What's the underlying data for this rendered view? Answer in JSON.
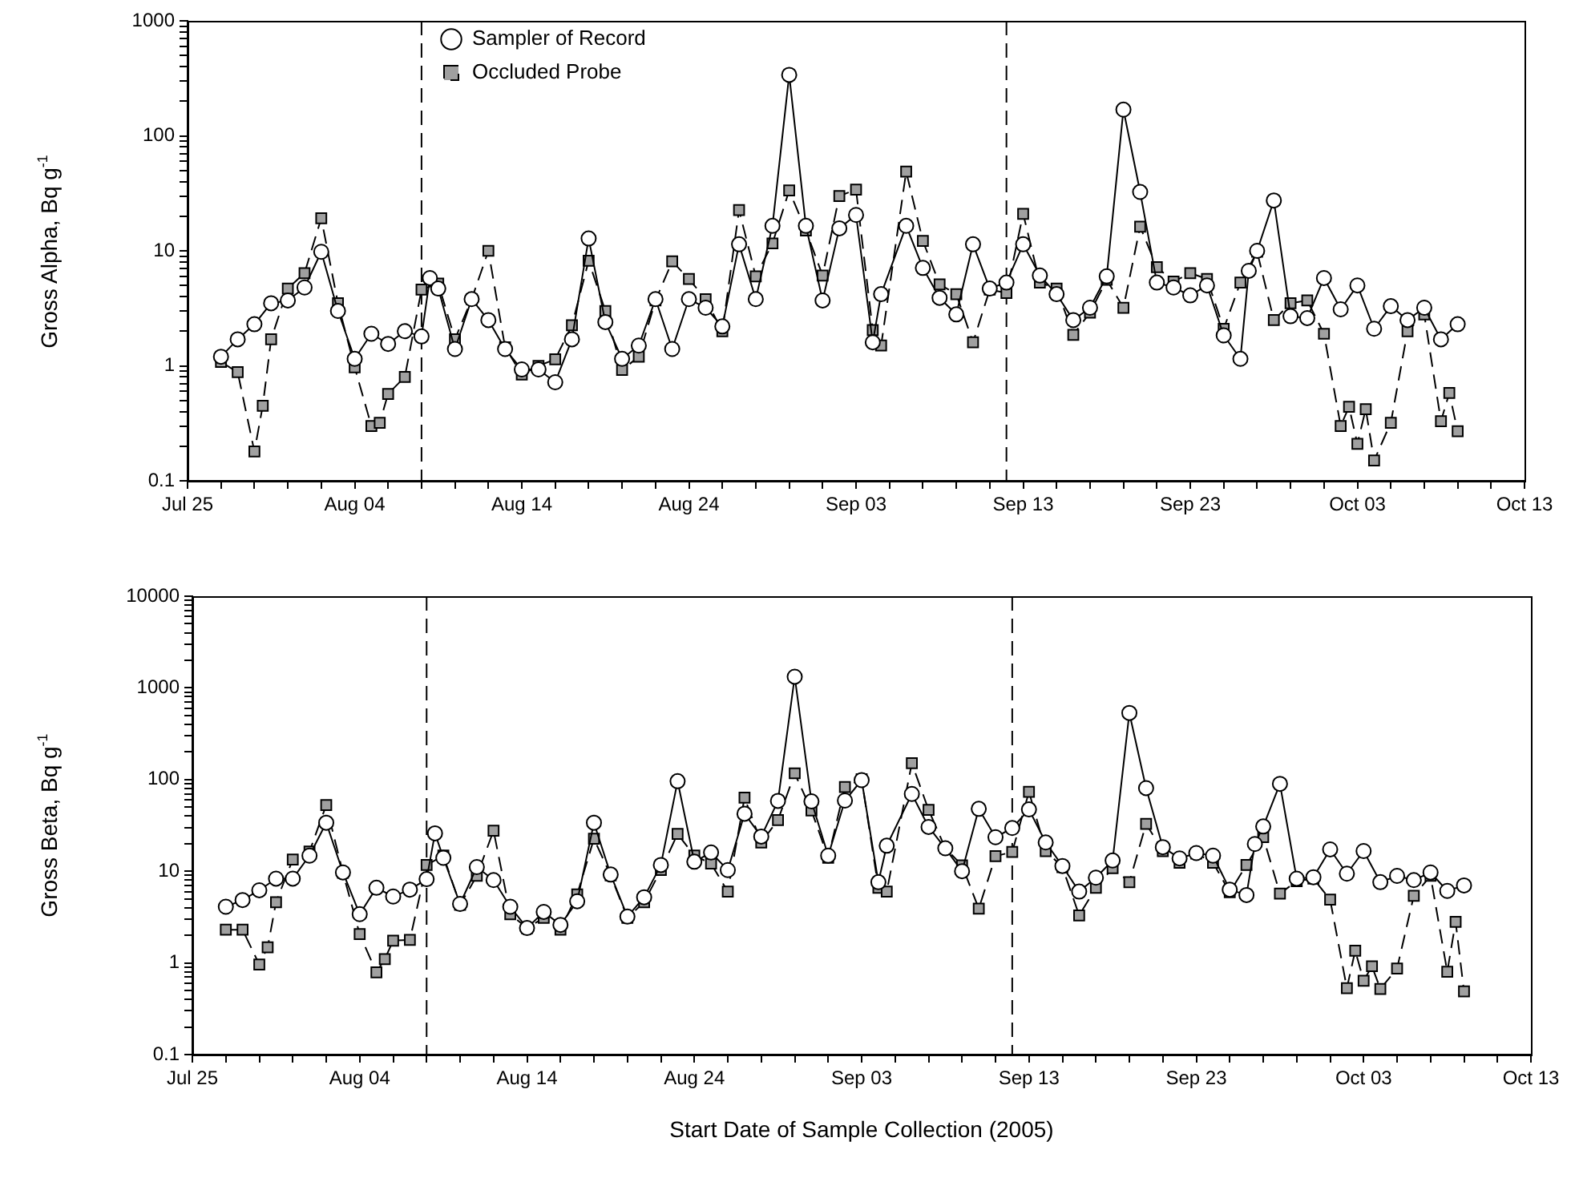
{
  "chart_data": [
    {
      "type": "line",
      "ylabel": "Gross Alpha, Bq g$^{-1}$",
      "log": "y",
      "grid": false,
      "legend": "top left",
      "xlim": [
        "2005-07-25",
        "2005-10-13"
      ],
      "xticks": [
        {
          "value": "2005-07-25",
          "label": "Jul 25"
        },
        {
          "value": "2005-07-27",
          "label": null
        },
        {
          "value": "2005-07-29",
          "label": null
        },
        {
          "value": "2005-07-31",
          "label": null
        },
        {
          "value": "2005-08-02",
          "label": null
        },
        {
          "value": "2005-08-04",
          "label": "Aug 04"
        },
        {
          "value": "2005-08-06",
          "label": null
        },
        {
          "value": "2005-08-08",
          "label": null
        },
        {
          "value": "2005-08-10",
          "label": null
        },
        {
          "value": "2005-08-12",
          "label": null
        },
        {
          "value": "2005-08-14",
          "label": "Aug 14"
        },
        {
          "value": "2005-08-16",
          "label": null
        },
        {
          "value": "2005-08-18",
          "label": null
        },
        {
          "value": "2005-08-20",
          "label": null
        },
        {
          "value": "2005-08-22",
          "label": null
        },
        {
          "value": "2005-08-24",
          "label": "Aug 24"
        },
        {
          "value": "2005-08-26",
          "label": null
        },
        {
          "value": "2005-08-28",
          "label": null
        },
        {
          "value": "2005-08-30",
          "label": null
        },
        {
          "value": "2005-09-01",
          "label": null
        },
        {
          "value": "2005-09-03",
          "label": "Sep 03"
        },
        {
          "value": "2005-09-05",
          "label": null
        },
        {
          "value": "2005-09-07",
          "label": null
        },
        {
          "value": "2005-09-09",
          "label": null
        },
        {
          "value": "2005-09-11",
          "label": null
        },
        {
          "value": "2005-09-13",
          "label": "Sep 13"
        },
        {
          "value": "2005-09-15",
          "label": null
        },
        {
          "value": "2005-09-17",
          "label": null
        },
        {
          "value": "2005-09-19",
          "label": null
        },
        {
          "value": "2005-09-21",
          "label": null
        },
        {
          "value": "2005-09-23",
          "label": "Sep 23"
        },
        {
          "value": "2005-09-25",
          "label": null
        },
        {
          "value": "2005-09-27",
          "label": null
        },
        {
          "value": "2005-09-29",
          "label": null
        },
        {
          "value": "2005-10-01",
          "label": null
        },
        {
          "value": "2005-10-03",
          "label": "Oct 03"
        },
        {
          "value": "2005-10-05",
          "label": null
        },
        {
          "value": "2005-10-07",
          "label": null
        },
        {
          "value": "2005-10-09",
          "label": null
        },
        {
          "value": "2005-10-11",
          "label": null
        },
        {
          "value": "2005-10-13",
          "label": "Oct 13"
        }
      ],
      "ylim": [
        0.1,
        1000
      ],
      "yticks": [
        0.1,
        {
          "value": 0.2,
          "label": null
        },
        {
          "value": 0.3,
          "label": null
        },
        {
          "value": 0.4,
          "label": null
        },
        {
          "value": 0.5,
          "label": null
        },
        {
          "value": 0.6,
          "label": null
        },
        {
          "value": 0.7,
          "label": null
        },
        {
          "value": 0.8,
          "label": null
        },
        {
          "value": 0.9,
          "label": null
        },
        1,
        {
          "value": 2,
          "label": null
        },
        {
          "value": 3,
          "label": null
        },
        {
          "value": 4,
          "label": null
        },
        {
          "value": 5,
          "label": null
        },
        {
          "value": 6,
          "label": null
        },
        {
          "value": 7,
          "label": null
        },
        {
          "value": 8,
          "label": null
        },
        {
          "value": 9,
          "label": null
        },
        10,
        {
          "value": 20,
          "label": null
        },
        {
          "value": 30,
          "label": null
        },
        {
          "value": 40,
          "label": null
        },
        {
          "value": 50,
          "label": null
        },
        {
          "value": 60,
          "label": null
        },
        {
          "value": 70,
          "label": null
        },
        {
          "value": 80,
          "label": null
        },
        {
          "value": 90,
          "label": null
        },
        100,
        {
          "value": 200,
          "label": null
        },
        {
          "value": 300,
          "label": null
        },
        {
          "value": 400,
          "label": null
        },
        {
          "value": 500,
          "label": null
        },
        {
          "value": 600,
          "label": null
        },
        {
          "value": 700,
          "label": null
        },
        {
          "value": 800,
          "label": null
        },
        {
          "value": 900,
          "label": null
        },
        1000
      ],
      "ref_lines": [
        {
          "axis": "x",
          "value": "2005-08-08",
          "color": "#000000",
          "line_style": "dashed"
        },
        {
          "axis": "x",
          "value": "2005-09-12",
          "color": "#000000",
          "line_style": "dashed"
        }
      ],
      "series": [
        {
          "name": "Sampler of Record",
          "color": "#ffffff",
          "marker": "circle",
          "line_style": "solid",
          "x": [
            "2005-07-27",
            "2005-07-28",
            "2005-07-29",
            "2005-07-30",
            "2005-07-31",
            "2005-08-01",
            "2005-08-02",
            "2005-08-03",
            "2005-08-04",
            "2005-08-05",
            "2005-08-06",
            "2005-08-07",
            "2005-08-08",
            "2005-08-08T12:00",
            "2005-08-09",
            "2005-08-10",
            "2005-08-11",
            "2005-08-12",
            "2005-08-13",
            "2005-08-14",
            "2005-08-15",
            "2005-08-16",
            "2005-08-17",
            "2005-08-18",
            "2005-08-19",
            "2005-08-20",
            "2005-08-21",
            "2005-08-22",
            "2005-08-23",
            "2005-08-24",
            "2005-08-25",
            "2005-08-26",
            "2005-08-27",
            "2005-08-28",
            "2005-08-29",
            "2005-08-30",
            "2005-08-31",
            "2005-09-01",
            "2005-09-02",
            "2005-09-03",
            "2005-09-04",
            "2005-09-04T12:00",
            "2005-09-06",
            "2005-09-07",
            "2005-09-08",
            "2005-09-09",
            "2005-09-10",
            "2005-09-11",
            "2005-09-12",
            "2005-09-13",
            "2005-09-14",
            "2005-09-15",
            "2005-09-16",
            "2005-09-17",
            "2005-09-18",
            "2005-09-19",
            "2005-09-20",
            "2005-09-21",
            "2005-09-22",
            "2005-09-23",
            "2005-09-24",
            "2005-09-25",
            "2005-09-26",
            "2005-09-26T12:00",
            "2005-09-27",
            "2005-09-28",
            "2005-09-29",
            "2005-09-30",
            "2005-10-01",
            "2005-10-02",
            "2005-10-03",
            "2005-10-04",
            "2005-10-05",
            "2005-10-06",
            "2005-10-07",
            "2005-10-08",
            "2005-10-09"
          ],
          "values": [
            1.2,
            1.7,
            2.3,
            3.5,
            3.7,
            4.8,
            9.8,
            3.0,
            1.15,
            1.9,
            1.55,
            2.0,
            1.8,
            5.8,
            4.7,
            1.4,
            3.8,
            2.5,
            1.4,
            0.93,
            0.93,
            0.72,
            1.7,
            12.8,
            2.4,
            1.15,
            1.5,
            3.8,
            1.4,
            3.8,
            3.2,
            2.2,
            11.4,
            3.8,
            16.5,
            339,
            16.5,
            3.7,
            15.7,
            20.5,
            1.6,
            4.2,
            16.5,
            7.1,
            3.9,
            2.8,
            11.4,
            4.7,
            5.3,
            11.4,
            6.1,
            4.2,
            2.5,
            3.2,
            6.0,
            169,
            32.5,
            5.3,
            4.8,
            4.1,
            5.0,
            1.84,
            1.15,
            6.7,
            10,
            27.4,
            2.7,
            2.6,
            5.8,
            3.1,
            5.0,
            2.1,
            3.3,
            2.5,
            3.2,
            1.7,
            2.3
          ]
        },
        {
          "name": "Occluded Probe",
          "color": "#a0a0a0",
          "marker": "square",
          "line_style": "dashed",
          "x": [
            "2005-07-27",
            "2005-07-28",
            "2005-07-29",
            "2005-07-29T12:00",
            "2005-07-30",
            "2005-07-31",
            "2005-08-01",
            "2005-08-02",
            "2005-08-03",
            "2005-08-04",
            "2005-08-05",
            "2005-08-05T12:00",
            "2005-08-06",
            "2005-08-07",
            "2005-08-08",
            "2005-08-09",
            "2005-08-10",
            "2005-08-11",
            "2005-08-12",
            "2005-08-13",
            "2005-08-14",
            "2005-08-15",
            "2005-08-16",
            "2005-08-17",
            "2005-08-18",
            "2005-08-19",
            "2005-08-20",
            "2005-08-21",
            "2005-08-22",
            "2005-08-23",
            "2005-08-24",
            "2005-08-25",
            "2005-08-26",
            "2005-08-27",
            "2005-08-28",
            "2005-08-29",
            "2005-08-30",
            "2005-08-31",
            "2005-09-01",
            "2005-09-02",
            "2005-09-03",
            "2005-09-04",
            "2005-09-04T12:00",
            "2005-09-06",
            "2005-09-07",
            "2005-09-08",
            "2005-09-09",
            "2005-09-10",
            "2005-09-11",
            "2005-09-12",
            "2005-09-13",
            "2005-09-14",
            "2005-09-15",
            "2005-09-16",
            "2005-09-17",
            "2005-09-18",
            "2005-09-19",
            "2005-09-20",
            "2005-09-21",
            "2005-09-22",
            "2005-09-23",
            "2005-09-24",
            "2005-09-25",
            "2005-09-26",
            "2005-09-27",
            "2005-09-28",
            "2005-09-29",
            "2005-09-30",
            "2005-10-01",
            "2005-10-02",
            "2005-10-02T12:00",
            "2005-10-03",
            "2005-10-03T12:00",
            "2005-10-04",
            "2005-10-05",
            "2005-10-06",
            "2005-10-07",
            "2005-10-08",
            "2005-10-08T12:00",
            "2005-10-09"
          ],
          "values": [
            1.08,
            0.88,
            0.18,
            0.45,
            1.7,
            4.7,
            6.4,
            19.2,
            3.5,
            0.97,
            0.3,
            0.32,
            0.57,
            0.8,
            4.6,
            5.2,
            1.7,
            3.8,
            10,
            1.45,
            0.84,
            1.0,
            1.14,
            2.25,
            8.2,
            3.0,
            0.92,
            1.2,
            3.7,
            8.1,
            5.7,
            3.8,
            2.0,
            22.6,
            6.0,
            11.6,
            33.5,
            15,
            6.1,
            30,
            34,
            2.05,
            1.5,
            48.8,
            12.2,
            5.1,
            4.2,
            1.6,
            4.6,
            4.3,
            21,
            5.3,
            4.7,
            1.86,
            2.9,
            5.6,
            3.2,
            16.2,
            7.2,
            5.4,
            6.4,
            5.7,
            2.1,
            5.3,
            9.8,
            2.5,
            3.5,
            3.7,
            1.9,
            0.3,
            0.44,
            0.21,
            0.42,
            0.15,
            0.32,
            2.0,
            2.8,
            0.33,
            0.58,
            0.27
          ]
        }
      ]
    },
    {
      "type": "line",
      "xlabel": "Start Date of Sample Collection (2005)",
      "ylabel": "Gross Beta, Bq g$^{-1}$",
      "log": "y",
      "grid": false,
      "xlim": [
        "2005-07-25",
        "2005-10-13"
      ],
      "xticks": [
        {
          "value": "2005-07-25",
          "label": "Jul 25"
        },
        {
          "value": "2005-07-27",
          "label": null
        },
        {
          "value": "2005-07-29",
          "label": null
        },
        {
          "value": "2005-07-31",
          "label": null
        },
        {
          "value": "2005-08-02",
          "label": null
        },
        {
          "value": "2005-08-04",
          "label": "Aug 04"
        },
        {
          "value": "2005-08-06",
          "label": null
        },
        {
          "value": "2005-08-08",
          "label": null
        },
        {
          "value": "2005-08-10",
          "label": null
        },
        {
          "value": "2005-08-12",
          "label": null
        },
        {
          "value": "2005-08-14",
          "label": "Aug 14"
        },
        {
          "value": "2005-08-16",
          "label": null
        },
        {
          "value": "2005-08-18",
          "label": null
        },
        {
          "value": "2005-08-20",
          "label": null
        },
        {
          "value": "2005-08-22",
          "label": null
        },
        {
          "value": "2005-08-24",
          "label": "Aug 24"
        },
        {
          "value": "2005-08-26",
          "label": null
        },
        {
          "value": "2005-08-28",
          "label": null
        },
        {
          "value": "2005-08-30",
          "label": null
        },
        {
          "value": "2005-09-01",
          "label": null
        },
        {
          "value": "2005-09-03",
          "label": "Sep 03"
        },
        {
          "value": "2005-09-05",
          "label": null
        },
        {
          "value": "2005-09-07",
          "label": null
        },
        {
          "value": "2005-09-09",
          "label": null
        },
        {
          "value": "2005-09-11",
          "label": null
        },
        {
          "value": "2005-09-13",
          "label": "Sep 13"
        },
        {
          "value": "2005-09-15",
          "label": null
        },
        {
          "value": "2005-09-17",
          "label": null
        },
        {
          "value": "2005-09-19",
          "label": null
        },
        {
          "value": "2005-09-21",
          "label": null
        },
        {
          "value": "2005-09-23",
          "label": "Sep 23"
        },
        {
          "value": "2005-09-25",
          "label": null
        },
        {
          "value": "2005-09-27",
          "label": null
        },
        {
          "value": "2005-09-29",
          "label": null
        },
        {
          "value": "2005-10-01",
          "label": null
        },
        {
          "value": "2005-10-03",
          "label": "Oct 03"
        },
        {
          "value": "2005-10-05",
          "label": null
        },
        {
          "value": "2005-10-07",
          "label": null
        },
        {
          "value": "2005-10-09",
          "label": null
        },
        {
          "value": "2005-10-11",
          "label": null
        },
        {
          "value": "2005-10-13",
          "label": "Oct 13"
        }
      ],
      "ylim": [
        0.1,
        10000
      ],
      "yticks": [
        0.1,
        {
          "value": 0.2,
          "label": null
        },
        {
          "value": 0.3,
          "label": null
        },
        {
          "value": 0.4,
          "label": null
        },
        {
          "value": 0.5,
          "label": null
        },
        {
          "value": 0.6,
          "label": null
        },
        {
          "value": 0.7,
          "label": null
        },
        {
          "value": 0.8,
          "label": null
        },
        {
          "value": 0.9,
          "label": null
        },
        1,
        {
          "value": 2,
          "label": null
        },
        {
          "value": 3,
          "label": null
        },
        {
          "value": 4,
          "label": null
        },
        {
          "value": 5,
          "label": null
        },
        {
          "value": 6,
          "label": null
        },
        {
          "value": 7,
          "label": null
        },
        {
          "value": 8,
          "label": null
        },
        {
          "value": 9,
          "label": null
        },
        10,
        {
          "value": 20,
          "label": null
        },
        {
          "value": 30,
          "label": null
        },
        {
          "value": 40,
          "label": null
        },
        {
          "value": 50,
          "label": null
        },
        {
          "value": 60,
          "label": null
        },
        {
          "value": 70,
          "label": null
        },
        {
          "value": 80,
          "label": null
        },
        {
          "value": 90,
          "label": null
        },
        100,
        {
          "value": 200,
          "label": null
        },
        {
          "value": 300,
          "label": null
        },
        {
          "value": 400,
          "label": null
        },
        {
          "value": 500,
          "label": null
        },
        {
          "value": 600,
          "label": null
        },
        {
          "value": 700,
          "label": null
        },
        {
          "value": 800,
          "label": null
        },
        {
          "value": 900,
          "label": null
        },
        1000,
        {
          "value": 2000,
          "label": null
        },
        {
          "value": 3000,
          "label": null
        },
        {
          "value": 4000,
          "label": null
        },
        {
          "value": 5000,
          "label": null
        },
        {
          "value": 6000,
          "label": null
        },
        {
          "value": 7000,
          "label": null
        },
        {
          "value": 8000,
          "label": null
        },
        {
          "value": 9000,
          "label": null
        },
        10000
      ],
      "ref_lines": [
        {
          "axis": "x",
          "value": "2005-08-08",
          "color": "#000000",
          "line_style": "dashed"
        },
        {
          "axis": "x",
          "value": "2005-09-12",
          "color": "#000000",
          "line_style": "dashed"
        }
      ],
      "series": [
        {
          "color": "#ffffff",
          "marker": "circle",
          "line_style": "solid",
          "x": [
            "2005-07-27",
            "2005-07-28",
            "2005-07-29",
            "2005-07-30",
            "2005-07-31",
            "2005-08-01",
            "2005-08-02",
            "2005-08-03",
            "2005-08-04",
            "2005-08-05",
            "2005-08-06",
            "2005-08-07",
            "2005-08-08",
            "2005-08-08T12:00",
            "2005-08-09",
            "2005-08-10",
            "2005-08-11",
            "2005-08-12",
            "2005-08-13",
            "2005-08-14",
            "2005-08-15",
            "2005-08-16",
            "2005-08-17",
            "2005-08-18",
            "2005-08-19",
            "2005-08-20",
            "2005-08-21",
            "2005-08-22",
            "2005-08-23",
            "2005-08-24",
            "2005-08-25",
            "2005-08-26",
            "2005-08-27",
            "2005-08-28",
            "2005-08-29",
            "2005-08-30",
            "2005-08-31",
            "2005-09-01",
            "2005-09-02",
            "2005-09-03",
            "2005-09-04",
            "2005-09-04T12:00",
            "2005-09-06",
            "2005-09-07",
            "2005-09-08",
            "2005-09-09",
            "2005-09-10",
            "2005-09-11",
            "2005-09-12",
            "2005-09-13",
            "2005-09-14",
            "2005-09-15",
            "2005-09-16",
            "2005-09-17",
            "2005-09-18",
            "2005-09-19",
            "2005-09-20",
            "2005-09-21",
            "2005-09-22",
            "2005-09-23",
            "2005-09-24",
            "2005-09-25",
            "2005-09-26",
            "2005-09-26T12:00",
            "2005-09-27",
            "2005-09-28",
            "2005-09-29",
            "2005-09-30",
            "2005-10-01",
            "2005-10-02",
            "2005-10-03",
            "2005-10-04",
            "2005-10-05",
            "2005-10-06",
            "2005-10-07",
            "2005-10-08",
            "2005-10-09"
          ],
          "values": [
            4.1,
            4.85,
            6.2,
            8.3,
            8.3,
            14.8,
            33.8,
            9.7,
            3.4,
            6.6,
            5.3,
            6.3,
            8.2,
            25.9,
            14,
            4.4,
            11.1,
            8.0,
            4.1,
            2.4,
            3.6,
            2.6,
            4.7,
            33.8,
            9.2,
            3.2,
            5.2,
            11.7,
            96,
            12.7,
            16,
            10.3,
            42.4,
            23.9,
            58.5,
            1324,
            57.8,
            14.8,
            59,
            98.6,
            7.6,
            19,
            69.7,
            30.4,
            17.8,
            10,
            47.9,
            23.5,
            29.6,
            47.2,
            20.6,
            11.4,
            6.0,
            8.5,
            13.1,
            533,
            80.7,
            18.3,
            13.8,
            15.8,
            14.8,
            6.3,
            5.5,
            19.8,
            30.8,
            89.8,
            8.3,
            8.6,
            17.3,
            9.4,
            16.6,
            7.6,
            8.9,
            8.0,
            9.7,
            6.1,
            7.0
          ]
        },
        {
          "color": "#a0a0a0",
          "marker": "square",
          "line_style": "dashed",
          "x": [
            "2005-07-27",
            "2005-07-28",
            "2005-07-29",
            "2005-07-29T12:00",
            "2005-07-30",
            "2005-07-31",
            "2005-08-01",
            "2005-08-02",
            "2005-08-03",
            "2005-08-04",
            "2005-08-05",
            "2005-08-05T12:00",
            "2005-08-06",
            "2005-08-07",
            "2005-08-08",
            "2005-08-09",
            "2005-08-10",
            "2005-08-11",
            "2005-08-12",
            "2005-08-13",
            "2005-08-14",
            "2005-08-15",
            "2005-08-16",
            "2005-08-17",
            "2005-08-18",
            "2005-08-19",
            "2005-08-20",
            "2005-08-21",
            "2005-08-22",
            "2005-08-23",
            "2005-08-24",
            "2005-08-25",
            "2005-08-26",
            "2005-08-27",
            "2005-08-28",
            "2005-08-29",
            "2005-08-30",
            "2005-08-31",
            "2005-09-01",
            "2005-09-02",
            "2005-09-03",
            "2005-09-04",
            "2005-09-04T12:00",
            "2005-09-06",
            "2005-09-07",
            "2005-09-08",
            "2005-09-09",
            "2005-09-10",
            "2005-09-11",
            "2005-09-12",
            "2005-09-13",
            "2005-09-14",
            "2005-09-15",
            "2005-09-16",
            "2005-09-17",
            "2005-09-18",
            "2005-09-19",
            "2005-09-20",
            "2005-09-21",
            "2005-09-22",
            "2005-09-23",
            "2005-09-24",
            "2005-09-25",
            "2005-09-26",
            "2005-09-27",
            "2005-09-28",
            "2005-09-29",
            "2005-09-30",
            "2005-10-01",
            "2005-10-02",
            "2005-10-02T12:00",
            "2005-10-03",
            "2005-10-03T12:00",
            "2005-10-04",
            "2005-10-05",
            "2005-10-06",
            "2005-10-07",
            "2005-10-08",
            "2005-10-08T12:00",
            "2005-10-09"
          ],
          "values": [
            2.3,
            2.3,
            0.96,
            1.48,
            4.6,
            13.4,
            16.4,
            52.6,
            9.6,
            2.06,
            0.79,
            1.1,
            1.75,
            1.78,
            11.7,
            14.8,
            4.3,
            8.9,
            27.7,
            3.4,
            2.4,
            3.1,
            2.3,
            5.6,
            22.6,
            9.0,
            3.1,
            4.6,
            10.3,
            25.5,
            14.8,
            12.1,
            6.0,
            63.4,
            20.6,
            36.2,
            117,
            46,
            14,
            83,
            101,
            6.6,
            6.0,
            151,
            46.7,
            17.8,
            11.6,
            3.9,
            14.6,
            16.2,
            73.5,
            16.6,
            11.1,
            3.3,
            6.6,
            10.8,
            7.6,
            32.9,
            16.6,
            12.4,
            15.6,
            12.4,
            5.9,
            11.7,
            23.5,
            5.7,
            7.8,
            8.3,
            4.9,
            0.53,
            1.36,
            0.64,
            0.92,
            0.52,
            0.87,
            5.4,
            8.9,
            0.8,
            2.8,
            0.49
          ]
        }
      ]
    }
  ]
}
